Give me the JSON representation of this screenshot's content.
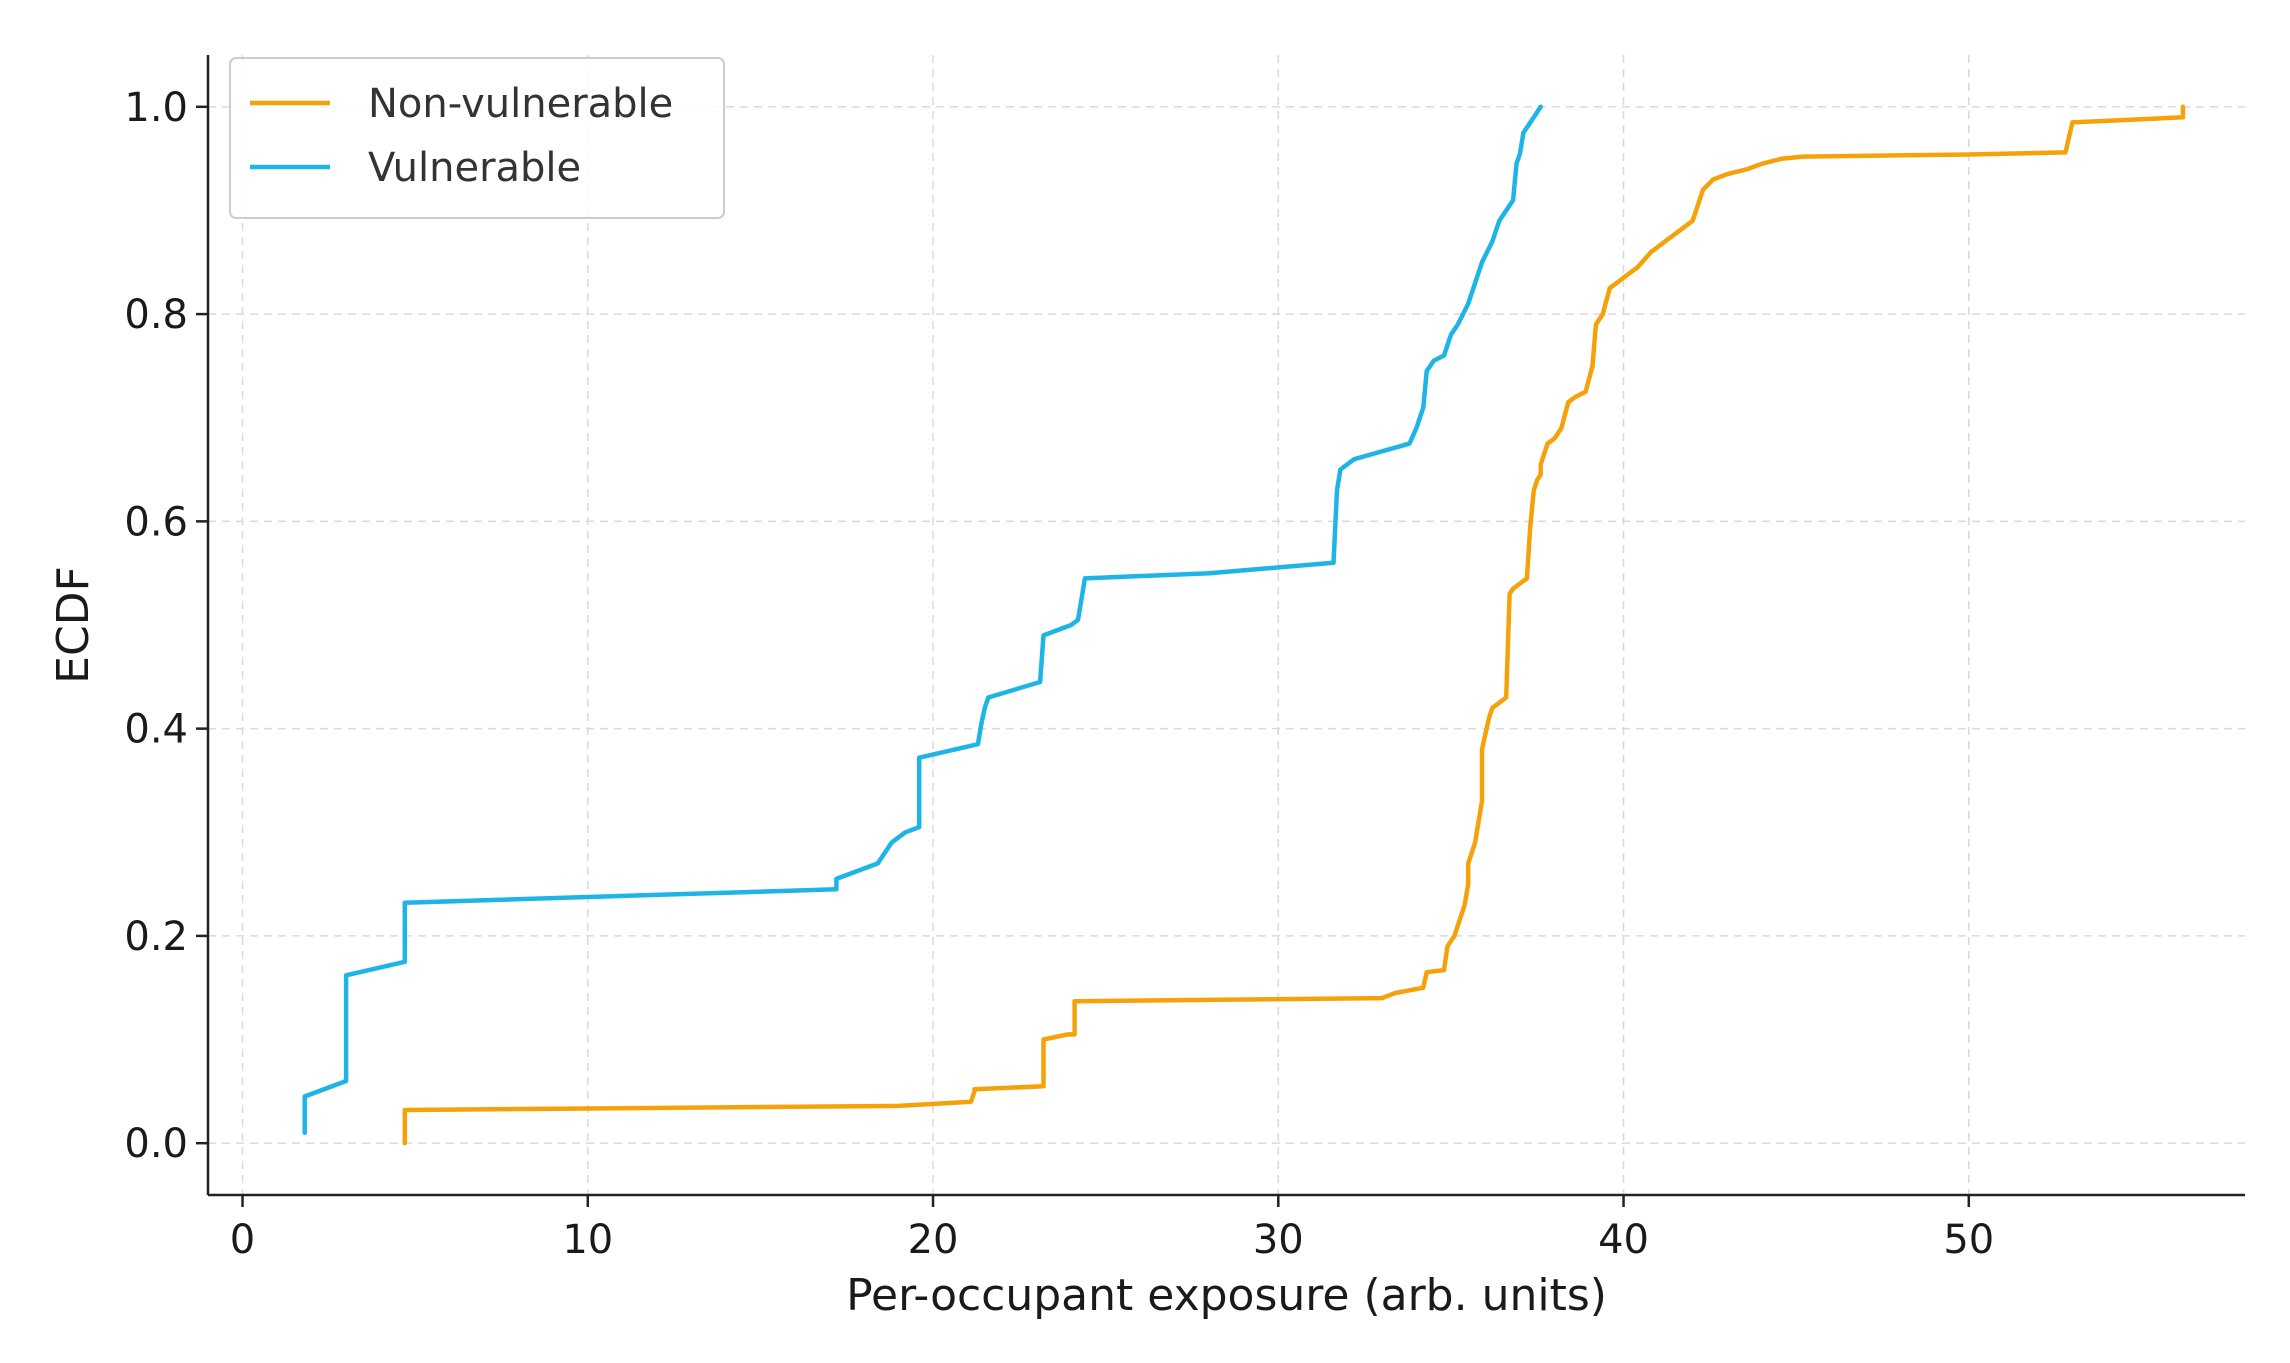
{
  "chart_data": {
    "type": "line",
    "step": true,
    "xlabel": "Per-occupant exposure (arb. units)",
    "ylabel": "ECDF",
    "xlim": [
      -1,
      58
    ],
    "ylim": [
      -0.05,
      1.05
    ],
    "xticks": [
      0,
      10,
      20,
      30,
      40,
      50
    ],
    "xtick_labels": [
      "0",
      "10",
      "20",
      "30",
      "40",
      "50"
    ],
    "yticks": [
      0.0,
      0.2,
      0.4,
      0.6,
      0.8,
      1.0
    ],
    "ytick_labels": [
      "0.0",
      "0.2",
      "0.4",
      "0.6",
      "0.8",
      "1.0"
    ],
    "grid": true,
    "legend": {
      "position": "top-left"
    },
    "series": [
      {
        "name": "Non-vulnerable",
        "color": "#F5A10A",
        "x": [
          4.7,
          4.7,
          19.0,
          21.1,
          21.2,
          21.2,
          23.2,
          23.2,
          23.9,
          24.1,
          24.1,
          33.0,
          33.4,
          34.2,
          34.3,
          34.8,
          34.9,
          35.1,
          35.2,
          35.3,
          35.4,
          35.5,
          35.5,
          35.7,
          35.8,
          35.9,
          35.9,
          36.1,
          36.2,
          36.6,
          36.7,
          36.8,
          37.0,
          37.2,
          37.3,
          37.4,
          37.5,
          37.6,
          37.6,
          37.8,
          38.0,
          38.2,
          38.4,
          38.6,
          38.9,
          39.1,
          39.2,
          39.4,
          39.6,
          39.8,
          40.2,
          40.4,
          40.8,
          41.2,
          41.6,
          42.0,
          42.3,
          42.6,
          43.0,
          43.6,
          44.0,
          44.6,
          45.2,
          50.0,
          52.8,
          53.0,
          55.0,
          56.2,
          56.2
        ],
        "y": [
          0.0,
          0.032,
          0.036,
          0.04,
          0.05,
          0.052,
          0.055,
          0.1,
          0.105,
          0.105,
          0.137,
          0.14,
          0.145,
          0.15,
          0.165,
          0.167,
          0.19,
          0.2,
          0.21,
          0.22,
          0.23,
          0.25,
          0.27,
          0.29,
          0.31,
          0.33,
          0.38,
          0.41,
          0.42,
          0.43,
          0.53,
          0.535,
          0.54,
          0.545,
          0.595,
          0.63,
          0.64,
          0.645,
          0.655,
          0.675,
          0.68,
          0.69,
          0.715,
          0.72,
          0.725,
          0.75,
          0.79,
          0.8,
          0.825,
          0.83,
          0.84,
          0.845,
          0.86,
          0.87,
          0.88,
          0.89,
          0.92,
          0.93,
          0.935,
          0.94,
          0.945,
          0.95,
          0.952,
          0.954,
          0.956,
          0.985,
          0.988,
          0.99,
          1.0
        ]
      },
      {
        "name": "Vulnerable",
        "color": "#1EB4E6",
        "x": [
          1.8,
          1.8,
          3.0,
          3.0,
          4.7,
          4.7,
          17.2,
          17.2,
          18.4,
          18.6,
          18.8,
          19.2,
          19.6,
          19.6,
          21.3,
          21.4,
          21.5,
          21.6,
          23.1,
          23.2,
          24.0,
          24.2,
          24.3,
          24.4,
          28.0,
          31.6,
          31.7,
          31.8,
          32.2,
          33.8,
          34.0,
          34.2,
          34.3,
          34.5,
          34.8,
          35.0,
          35.2,
          35.5,
          35.7,
          35.9,
          36.2,
          36.4,
          36.6,
          36.8,
          36.9,
          37.0,
          37.1,
          37.2,
          37.4,
          37.6
        ],
        "y": [
          0.01,
          0.045,
          0.06,
          0.162,
          0.175,
          0.232,
          0.245,
          0.255,
          0.27,
          0.28,
          0.29,
          0.3,
          0.305,
          0.372,
          0.385,
          0.405,
          0.42,
          0.43,
          0.445,
          0.49,
          0.5,
          0.505,
          0.525,
          0.545,
          0.55,
          0.56,
          0.63,
          0.65,
          0.66,
          0.675,
          0.69,
          0.71,
          0.745,
          0.755,
          0.76,
          0.78,
          0.79,
          0.81,
          0.83,
          0.85,
          0.87,
          0.89,
          0.9,
          0.91,
          0.945,
          0.955,
          0.975,
          0.98,
          0.99,
          1.0
        ]
      }
    ]
  }
}
